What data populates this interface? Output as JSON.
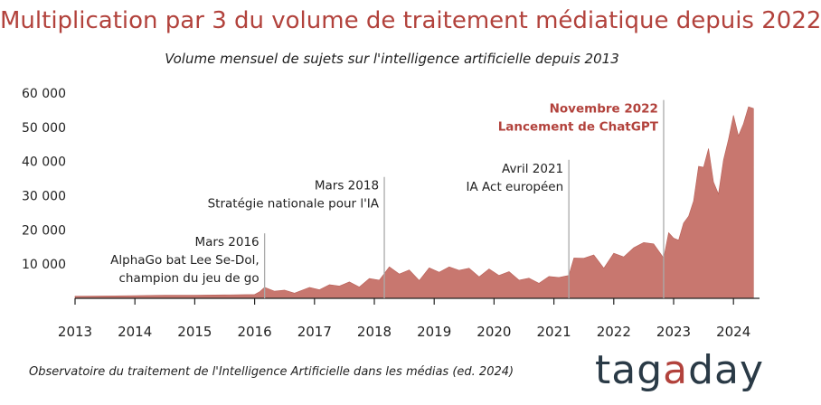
{
  "title": "Multiplication par 3 du volume de traitement médiatique depuis 2022",
  "subtitle": "Volume mensuel de sujets sur l'intelligence artificielle depuis 2013",
  "source": "Observatoire du traitement de l'Intelligence Artificielle dans les médias (ed. 2024)",
  "logo": {
    "part1": "tag",
    "accent": "a",
    "part2": "day"
  },
  "colors": {
    "area": "#c8776f",
    "title": "#b2423c",
    "annotation_line": "#aaaaaa",
    "axis": "#222222"
  },
  "chart_data": {
    "type": "area",
    "title": "Multiplication par 3 du volume de traitement médiatique depuis 2022",
    "subtitle": "Volume mensuel de sujets sur l'intelligence artificielle depuis 2013",
    "xlabel": "",
    "ylabel": "",
    "ylim": [
      0,
      60000
    ],
    "y_ticks": [
      10000,
      20000,
      30000,
      40000,
      50000,
      60000
    ],
    "y_tick_labels": [
      "10 000",
      "20 000",
      "30 000",
      "40 000",
      "50 000",
      "60 000"
    ],
    "x_ticks": [
      "2013",
      "2014",
      "2015",
      "2016",
      "2017",
      "2018",
      "2019",
      "2020",
      "2021",
      "2022",
      "2023",
      "2024"
    ],
    "grid": false,
    "series": [
      {
        "points": [
          [
            "2013-01",
            600
          ],
          [
            "2013-07",
            700
          ],
          [
            "2014-01",
            800
          ],
          [
            "2014-07",
            900
          ],
          [
            "2015-01",
            900
          ],
          [
            "2015-07",
            1000
          ],
          [
            "2016-01",
            1100
          ],
          [
            "2016-02",
            1900
          ],
          [
            "2016-03",
            3200
          ],
          [
            "2016-05",
            2100
          ],
          [
            "2016-07",
            2400
          ],
          [
            "2016-09",
            1500
          ],
          [
            "2016-12",
            3200
          ],
          [
            "2017-02",
            2500
          ],
          [
            "2017-04",
            4000
          ],
          [
            "2017-06",
            3600
          ],
          [
            "2017-08",
            4800
          ],
          [
            "2017-10",
            3300
          ],
          [
            "2017-12",
            5800
          ],
          [
            "2018-02",
            5300
          ],
          [
            "2018-04",
            9200
          ],
          [
            "2018-06",
            7100
          ],
          [
            "2018-08",
            8300
          ],
          [
            "2018-10",
            5200
          ],
          [
            "2018-12",
            8900
          ],
          [
            "2019-02",
            7600
          ],
          [
            "2019-04",
            9200
          ],
          [
            "2019-06",
            8200
          ],
          [
            "2019-08",
            8800
          ],
          [
            "2019-10",
            6300
          ],
          [
            "2019-12",
            8600
          ],
          [
            "2020-02",
            6700
          ],
          [
            "2020-04",
            7800
          ],
          [
            "2020-06",
            5300
          ],
          [
            "2020-08",
            5900
          ],
          [
            "2020-10",
            4400
          ],
          [
            "2020-12",
            6400
          ],
          [
            "2021-02",
            6100
          ],
          [
            "2021-04",
            6700
          ],
          [
            "2021-05",
            11800
          ],
          [
            "2021-07",
            11700
          ],
          [
            "2021-09",
            12700
          ],
          [
            "2021-11",
            8800
          ],
          [
            "2022-01",
            13200
          ],
          [
            "2022-03",
            12100
          ],
          [
            "2022-05",
            14800
          ],
          [
            "2022-07",
            16300
          ],
          [
            "2022-09",
            15900
          ],
          [
            "2022-11",
            11800
          ],
          [
            "2022-12",
            19200
          ],
          [
            "2023-01",
            17600
          ],
          [
            "2023-02",
            17000
          ],
          [
            "2023-03",
            22000
          ],
          [
            "2023-04",
            24000
          ],
          [
            "2023-05",
            28500
          ],
          [
            "2023-06",
            38600
          ],
          [
            "2023-07",
            38300
          ],
          [
            "2023-08",
            43800
          ],
          [
            "2023-09",
            34000
          ],
          [
            "2023-10",
            30500
          ],
          [
            "2023-11",
            40500
          ],
          [
            "2023-12",
            46500
          ],
          [
            "2024-01",
            53500
          ],
          [
            "2024-02",
            47500
          ],
          [
            "2024-03",
            51000
          ],
          [
            "2024-04",
            56000
          ],
          [
            "2024-05",
            55500
          ]
        ]
      }
    ],
    "annotations": [
      {
        "date": "2016-03",
        "line_top": 19000,
        "lines": [
          "Mars 2016",
          "AlphaGo bat Lee Se-Dol,",
          "champion du jeu de go"
        ],
        "highlight": false
      },
      {
        "date": "2018-03",
        "line_top": 35500,
        "lines": [
          "Mars 2018",
          "Stratégie nationale pour l'IA"
        ],
        "highlight": false
      },
      {
        "date": "2021-04",
        "line_top": 40500,
        "lines": [
          "Avril 2021",
          "IA Act européen"
        ],
        "highlight": false
      },
      {
        "date": "2022-11",
        "line_top": 58000,
        "lines": [
          "Novembre 2022",
          "Lancement de ChatGPT"
        ],
        "highlight": true
      }
    ]
  }
}
